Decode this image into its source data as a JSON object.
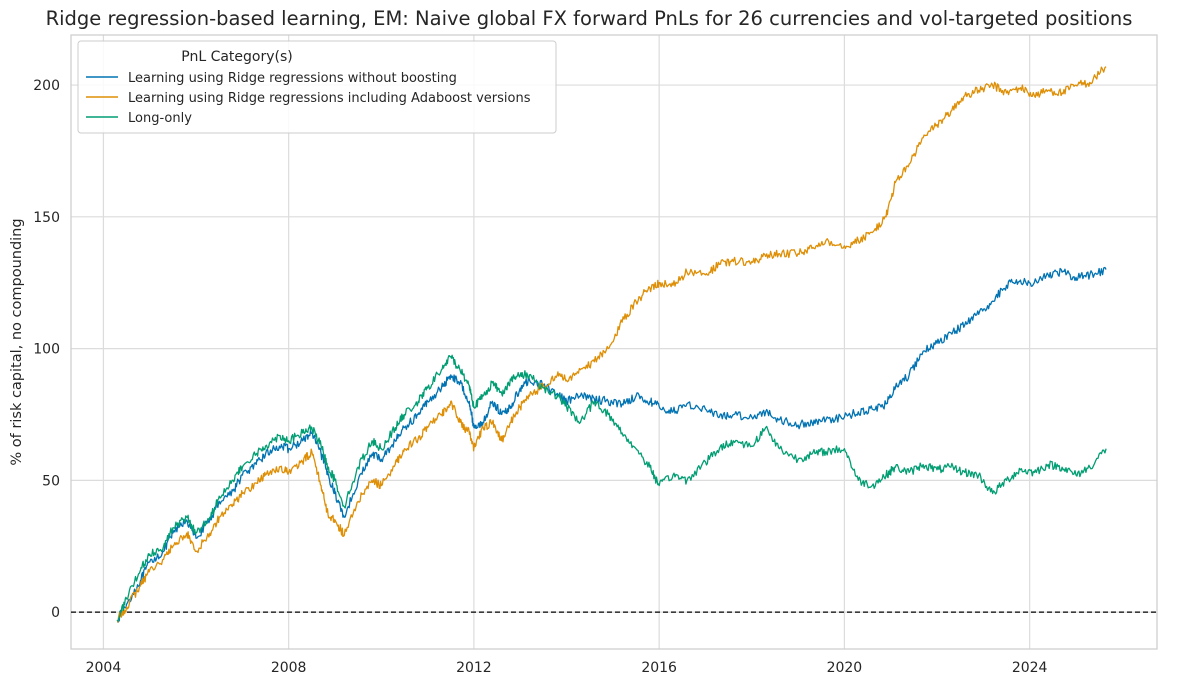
{
  "chart_data": {
    "type": "line",
    "title": "Ridge regression-based learning, EM: Naive global FX forward PnLs for 26 currencies and vol-targeted positions",
    "xlabel": "",
    "ylabel": "% of risk capital, no compounding",
    "xlim": [
      2003.3,
      2026.75
    ],
    "ylim": [
      -14,
      219
    ],
    "x_ticks": [
      2004,
      2008,
      2012,
      2016,
      2020,
      2024
    ],
    "x_tick_labels": [
      "2004",
      "2008",
      "2012",
      "2016",
      "2020",
      "2024"
    ],
    "y_ticks": [
      0,
      50,
      100,
      150,
      200
    ],
    "y_tick_labels": [
      "0",
      "50",
      "100",
      "150",
      "200"
    ],
    "grid": true,
    "zero_line": {
      "y": 0,
      "style": "dashed",
      "color": "#000000"
    },
    "legend": {
      "title": "PnL Category(s)",
      "placement": "top-left"
    },
    "series": [
      {
        "name": "Learning using Ridge regressions without boosting",
        "color": "#0173b2",
        "x": [
          2004.3,
          2004.5,
          2004.8,
          2005.0,
          2005.3,
          2005.5,
          2005.8,
          2006.0,
          2006.3,
          2006.5,
          2006.8,
          2007.0,
          2007.3,
          2007.5,
          2007.8,
          2008.0,
          2008.3,
          2008.5,
          2008.7,
          2008.85,
          2009.0,
          2009.2,
          2009.5,
          2009.8,
          2010.0,
          2010.3,
          2010.5,
          2010.8,
          2011.0,
          2011.3,
          2011.5,
          2011.7,
          2011.9,
          2012.0,
          2012.2,
          2012.4,
          2012.6,
          2012.8,
          2013.0,
          2013.2,
          2013.5,
          2013.8,
          2014.0,
          2014.3,
          2014.6,
          2014.9,
          2015.2,
          2015.5,
          2015.8,
          2016.0,
          2016.3,
          2016.6,
          2017.0,
          2017.3,
          2017.6,
          2018.0,
          2018.3,
          2018.6,
          2019.0,
          2019.3,
          2019.6,
          2020.0,
          2020.3,
          2020.6,
          2020.9,
          2021.1,
          2021.4,
          2021.7,
          2022.0,
          2022.3,
          2022.6,
          2022.9,
          2023.2,
          2023.5,
          2023.8,
          2024.1,
          2024.4,
          2024.7,
          2025.0,
          2025.3,
          2025.65
        ],
        "y": [
          -3,
          3,
          12,
          19,
          23,
          30,
          35,
          28,
          35,
          42,
          46,
          52,
          56,
          60,
          63,
          62,
          65,
          68,
          60,
          52,
          45,
          36,
          50,
          60,
          58,
          65,
          70,
          75,
          80,
          85,
          90,
          87,
          80,
          70,
          72,
          80,
          75,
          78,
          85,
          88,
          86,
          83,
          80,
          82,
          81,
          80,
          79,
          82,
          80,
          78,
          76,
          79,
          77,
          74,
          75,
          74,
          76,
          73,
          71,
          72,
          73,
          74,
          76,
          77,
          79,
          85,
          90,
          99,
          102,
          106,
          109,
          113,
          118,
          124,
          126,
          125,
          128,
          129,
          127,
          128,
          130
        ]
      },
      {
        "name": "Learning using Ridge regressions including Adaboost versions",
        "color": "#de8f05",
        "x": [
          2004.3,
          2004.5,
          2004.8,
          2005.0,
          2005.3,
          2005.5,
          2005.8,
          2006.0,
          2006.3,
          2006.5,
          2006.8,
          2007.0,
          2007.3,
          2007.5,
          2007.8,
          2008.0,
          2008.3,
          2008.5,
          2008.7,
          2008.85,
          2009.0,
          2009.2,
          2009.5,
          2009.8,
          2010.0,
          2010.3,
          2010.5,
          2010.8,
          2011.0,
          2011.3,
          2011.5,
          2011.7,
          2011.9,
          2012.0,
          2012.2,
          2012.4,
          2012.6,
          2012.8,
          2013.0,
          2013.2,
          2013.5,
          2013.8,
          2014.0,
          2014.3,
          2014.6,
          2014.9,
          2015.2,
          2015.5,
          2015.8,
          2016.0,
          2016.3,
          2016.6,
          2017.0,
          2017.3,
          2017.6,
          2018.0,
          2018.3,
          2018.6,
          2019.0,
          2019.3,
          2019.6,
          2020.0,
          2020.3,
          2020.6,
          2020.9,
          2021.1,
          2021.4,
          2021.7,
          2022.0,
          2022.3,
          2022.6,
          2022.9,
          2023.2,
          2023.5,
          2023.8,
          2024.1,
          2024.4,
          2024.7,
          2025.0,
          2025.3,
          2025.65
        ],
        "y": [
          -3,
          2,
          10,
          16,
          20,
          25,
          30,
          23,
          30,
          36,
          41,
          45,
          49,
          52,
          55,
          53,
          57,
          61,
          48,
          37,
          35,
          29,
          42,
          50,
          48,
          56,
          62,
          66,
          70,
          75,
          80,
          72,
          68,
          62,
          70,
          72,
          65,
          72,
          78,
          82,
          86,
          90,
          88,
          92,
          95,
          100,
          110,
          118,
          123,
          125,
          124,
          129,
          128,
          132,
          133,
          133,
          135,
          136,
          136,
          138,
          141,
          139,
          141,
          144,
          150,
          163,
          170,
          180,
          185,
          190,
          196,
          198,
          200,
          197,
          199,
          196,
          198,
          197,
          200,
          201,
          207
        ]
      },
      {
        "name": "Long-only",
        "color": "#029e73",
        "x": [
          2004.3,
          2004.5,
          2004.8,
          2005.0,
          2005.3,
          2005.5,
          2005.8,
          2006.0,
          2006.3,
          2006.5,
          2006.8,
          2007.0,
          2007.3,
          2007.5,
          2007.8,
          2008.0,
          2008.3,
          2008.5,
          2008.7,
          2008.85,
          2009.0,
          2009.2,
          2009.5,
          2009.8,
          2010.0,
          2010.3,
          2010.5,
          2010.8,
          2011.0,
          2011.3,
          2011.5,
          2011.7,
          2011.9,
          2012.0,
          2012.2,
          2012.4,
          2012.6,
          2012.8,
          2013.0,
          2013.2,
          2013.5,
          2013.8,
          2014.0,
          2014.3,
          2014.6,
          2014.9,
          2015.2,
          2015.5,
          2015.8,
          2016.0,
          2016.3,
          2016.6,
          2017.0,
          2017.3,
          2017.6,
          2018.0,
          2018.3,
          2018.6,
          2019.0,
          2019.3,
          2019.6,
          2020.0,
          2020.3,
          2020.6,
          2020.9,
          2021.1,
          2021.4,
          2021.7,
          2022.0,
          2022.3,
          2022.6,
          2022.9,
          2023.2,
          2023.5,
          2023.8,
          2024.1,
          2024.4,
          2024.7,
          2025.0,
          2025.3,
          2025.65
        ],
        "y": [
          -3,
          5,
          16,
          22,
          25,
          32,
          36,
          30,
          36,
          44,
          50,
          55,
          60,
          63,
          67,
          65,
          68,
          70,
          63,
          55,
          50,
          40,
          55,
          65,
          62,
          70,
          75,
          80,
          85,
          92,
          97,
          92,
          86,
          78,
          82,
          87,
          83,
          88,
          90,
          90,
          85,
          82,
          78,
          72,
          80,
          75,
          68,
          62,
          55,
          48,
          52,
          50,
          57,
          62,
          65,
          63,
          70,
          62,
          58,
          60,
          61,
          62,
          50,
          48,
          52,
          55,
          53,
          56,
          54,
          55,
          53,
          52,
          45,
          50,
          54,
          53,
          56,
          55,
          52,
          55,
          62
        ]
      }
    ]
  }
}
